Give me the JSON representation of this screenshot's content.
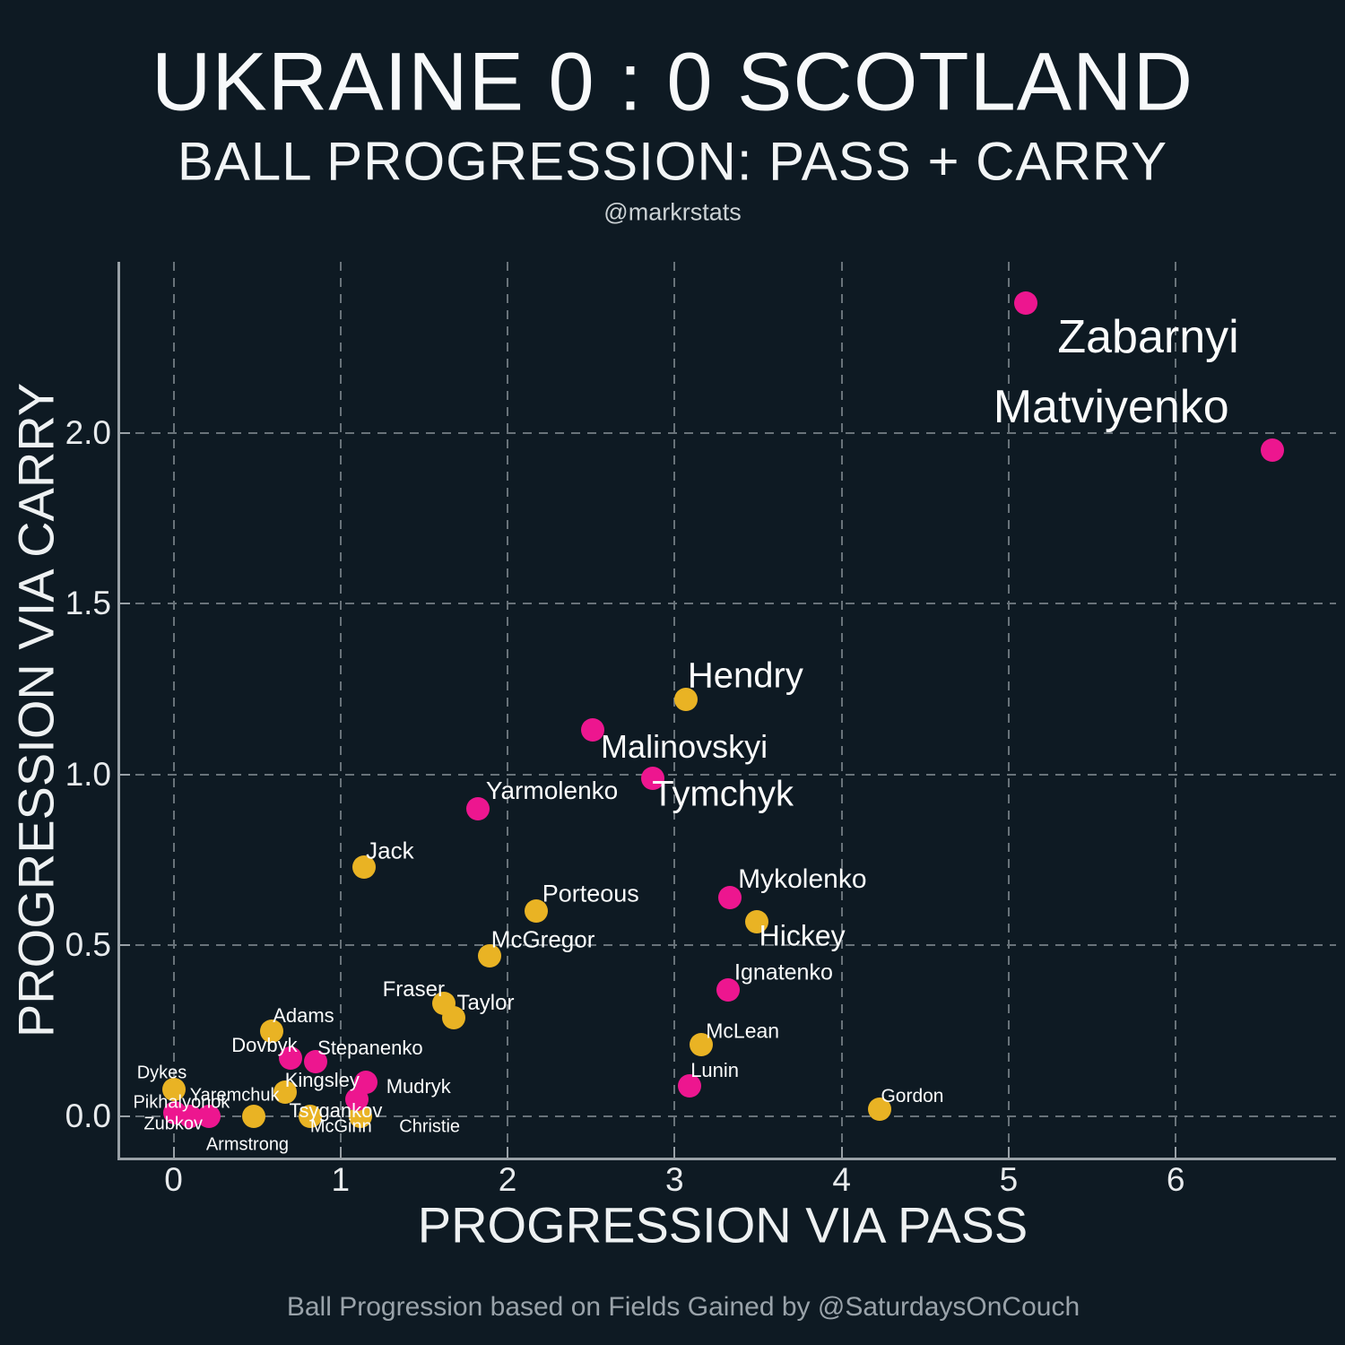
{
  "header": {
    "title": "UKRAINE 0 : 0 SCOTLAND",
    "subtitle": "BALL PROGRESSION: PASS + CARRY",
    "credit": "@markrstats"
  },
  "footer": {
    "caption": "Ball Progression based on Fields Gained by @SaturdaysOnCouch"
  },
  "chart_data": {
    "type": "scatter",
    "title": "UKRAINE 0 : 0 SCOTLAND",
    "subtitle": "BALL PROGRESSION: PASS + CARRY",
    "xlabel": "PROGRESSION VIA PASS",
    "ylabel": "PROGRESSION VIA CARRY",
    "xlim": [
      -0.325,
      6.96
    ],
    "ylim": [
      -0.123,
      2.5
    ],
    "xticks": [
      0,
      1,
      2,
      3,
      4,
      5,
      6
    ],
    "xtick_labels": [
      "0",
      "1",
      "2",
      "3",
      "4",
      "5",
      "6"
    ],
    "yticks": [
      0.0,
      0.5,
      1.0,
      1.5,
      2.0
    ],
    "ytick_labels": [
      "0.0",
      "0.5",
      "1.0",
      "1.5",
      "2.0"
    ],
    "grid": "dashed",
    "legend": "none",
    "background_color": "#0e1a23",
    "gridline_color": "#69737a",
    "axisline_color": "#99a1a7",
    "series": [
      {
        "name": "Scotland",
        "color": "#e9b324",
        "points": [
          {
            "name": "Hendry",
            "x": 3.07,
            "y": 1.22,
            "label_size": 40,
            "dx": 66,
            "dy": -26
          },
          {
            "name": "Jack",
            "x": 1.14,
            "y": 0.73,
            "label_size": 26,
            "dx": 29,
            "dy": -18
          },
          {
            "name": "Porteous",
            "x": 2.17,
            "y": 0.6,
            "label_size": 27,
            "dx": 61,
            "dy": -19
          },
          {
            "name": "McGregor",
            "x": 1.89,
            "y": 0.47,
            "label_size": 26,
            "dx": 60,
            "dy": -18
          },
          {
            "name": "Hickey",
            "x": 3.49,
            "y": 0.57,
            "label_size": 32,
            "dx": 51,
            "dy": 16
          },
          {
            "name": "Fraser",
            "x": 1.62,
            "y": 0.33,
            "label_size": 24,
            "dx": -34,
            "dy": -15
          },
          {
            "name": "Taylor",
            "x": 1.68,
            "y": 0.29,
            "label_size": 24,
            "dx": 35,
            "dy": -16
          },
          {
            "name": "Adams",
            "x": 0.59,
            "y": 0.25,
            "label_size": 22,
            "dx": 35,
            "dy": -17
          },
          {
            "name": "McLean",
            "x": 3.16,
            "y": 0.21,
            "label_size": 23,
            "dx": 46,
            "dy": -15
          },
          {
            "name": "Kingsley",
            "x": 0.67,
            "y": 0.07,
            "label_size": 22,
            "dx": 41,
            "dy": -13
          },
          {
            "name": "Dykes",
            "x": 0.0,
            "y": 0.08,
            "label_size": 20,
            "dx": -13,
            "dy": -18
          },
          {
            "name": "Armstrong",
            "x": 0.48,
            "y": 0.0,
            "label_size": 20,
            "dx": -7,
            "dy": 32
          },
          {
            "name": "McGinn",
            "x": 0.82,
            "y": 0.0,
            "label_size": 20,
            "dx": 34,
            "dy": 12
          },
          {
            "name": "Christie",
            "x": 1.12,
            "y": 0.0,
            "label_size": 20,
            "dx": 77,
            "dy": 12
          },
          {
            "name": "Gordon",
            "x": 4.23,
            "y": 0.02,
            "label_size": 21,
            "dx": 36,
            "dy": -14
          }
        ]
      },
      {
        "name": "Ukraine",
        "color": "#ed168f",
        "points": [
          {
            "name": "Zabarnyi",
            "x": 5.1,
            "y": 2.38,
            "label_size": 52,
            "dx": 137,
            "dy": 38
          },
          {
            "name": "Matviyenko",
            "x": 6.58,
            "y": 1.95,
            "label_size": 52,
            "dx": -180,
            "dy": -48
          },
          {
            "name": "Malinovskyi",
            "x": 2.51,
            "y": 1.13,
            "label_size": 36,
            "dx": 102,
            "dy": 19
          },
          {
            "name": "Tymchyk",
            "x": 2.87,
            "y": 0.99,
            "label_size": 40,
            "dx": 78,
            "dy": 18
          },
          {
            "name": "Yarmolenko",
            "x": 1.82,
            "y": 0.9,
            "label_size": 28,
            "dx": 83,
            "dy": -20
          },
          {
            "name": "Mykolenko",
            "x": 3.33,
            "y": 0.64,
            "label_size": 30,
            "dx": 81,
            "dy": -20
          },
          {
            "name": "Ignatenko",
            "x": 3.32,
            "y": 0.37,
            "label_size": 25,
            "dx": 62,
            "dy": -19
          },
          {
            "name": "Lunin",
            "x": 3.09,
            "y": 0.09,
            "label_size": 22,
            "dx": 28,
            "dy": -17
          },
          {
            "name": "Mudryk",
            "x": 1.15,
            "y": 0.1,
            "label_size": 22,
            "dx": 59,
            "dy": 5
          },
          {
            "name": "Tsygankov",
            "x": 1.1,
            "y": 0.05,
            "label_size": 22,
            "dx": -24,
            "dy": 13
          },
          {
            "name": "Dovbyk",
            "x": 0.7,
            "y": 0.17,
            "label_size": 22,
            "dx": -29,
            "dy": -14
          },
          {
            "name": "Stepanenko",
            "x": 0.85,
            "y": 0.16,
            "label_size": 22,
            "dx": 61,
            "dy": -15
          },
          {
            "name": "Pikhalyonok",
            "x": 0.01,
            "y": 0.01,
            "label_size": 20,
            "dx": 7,
            "dy": -11
          },
          {
            "name": "Zubkov",
            "x": 0.1,
            "y": 0.0,
            "label_size": 20,
            "dx": -19,
            "dy": 9
          },
          {
            "name": "Yaremchuk",
            "x": 0.21,
            "y": 0.0,
            "label_size": 20,
            "dx": 29,
            "dy": -23
          }
        ]
      }
    ]
  }
}
